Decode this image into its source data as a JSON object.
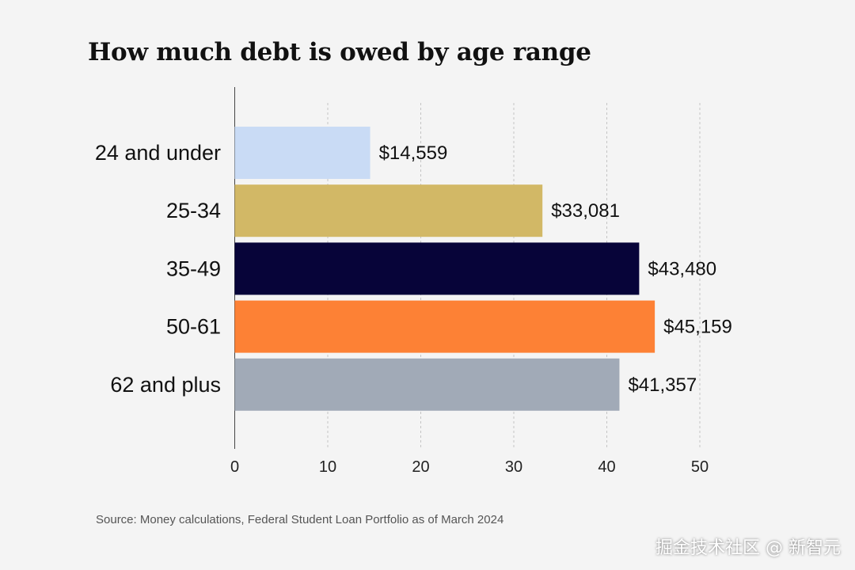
{
  "chart_data": {
    "type": "bar",
    "orientation": "horizontal",
    "title": "How much debt is owed by age range",
    "categories": [
      "24 and under",
      "25-34",
      "35-49",
      "50-61",
      "62 and plus"
    ],
    "values": [
      14.559,
      33.081,
      43.48,
      45.159,
      41.357
    ],
    "value_labels": [
      "$14,559",
      "$33,081",
      "$43,480",
      "$45,159",
      "$41,357"
    ],
    "colors": [
      "#c9dbf5",
      "#d2b866",
      "#070439",
      "#fd8135",
      "#a1aab7"
    ],
    "x_ticks": [
      "0",
      "10",
      "20",
      "30",
      "40",
      "50"
    ],
    "xlim": [
      0,
      50
    ],
    "xlabel": "",
    "ylabel": "",
    "grid": true,
    "legend": "none"
  },
  "source": "Source: Money calculations, Federal Student Loan Portfolio as of March 2024",
  "watermark": "掘金技术社区 @ 新智元"
}
